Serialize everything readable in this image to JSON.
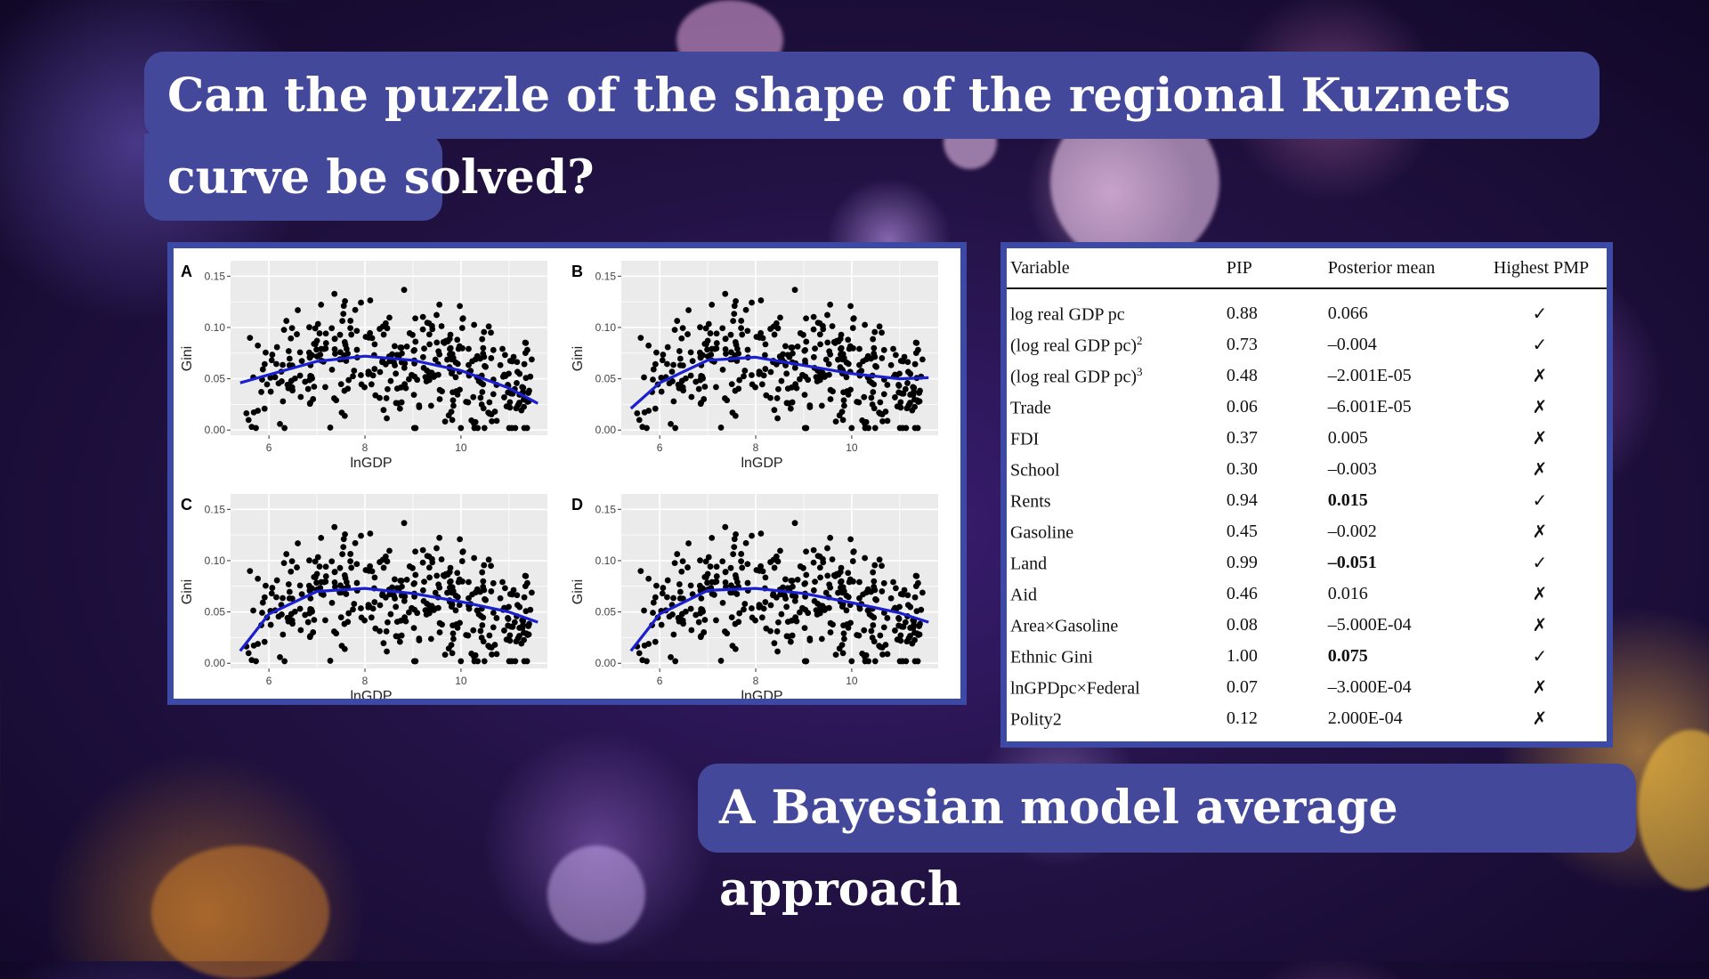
{
  "title": "Can the puzzle of the shape of the regional Kuznets curve be solved?",
  "subtitle": "A Bayesian model average approach",
  "colors": {
    "box": "#43489a",
    "frame": "#3c4aa6",
    "curve": "#1a1fd0",
    "panel_bg": "#ebebeb"
  },
  "figure": {
    "panels": [
      {
        "label": "A",
        "ylabel": "Gini",
        "xlabel": "lnGDP"
      },
      {
        "label": "B",
        "ylabel": "Gini",
        "xlabel": "lnGDP"
      },
      {
        "label": "C",
        "ylabel": "Gini",
        "xlabel": "lnGDP"
      },
      {
        "label": "D",
        "ylabel": "Gini",
        "xlabel": "lnGDP"
      }
    ],
    "y_ticks": [
      "0.00",
      "0.05",
      "0.10",
      "0.15"
    ],
    "x_ticks": [
      "6",
      "8",
      "10"
    ]
  },
  "chart_data": [
    {
      "type": "scatter",
      "title": "A",
      "xlabel": "lnGDP",
      "ylabel": "Gini",
      "xlim": [
        5.2,
        11.8
      ],
      "ylim": [
        -0.005,
        0.165
      ],
      "fit": {
        "x": [
          5.4,
          6,
          7,
          8,
          9,
          10,
          11,
          11.6
        ],
        "y": [
          0.046,
          0.054,
          0.067,
          0.072,
          0.068,
          0.058,
          0.041,
          0.026
        ]
      }
    },
    {
      "type": "scatter",
      "title": "B",
      "xlabel": "lnGDP",
      "ylabel": "Gini",
      "xlim": [
        5.2,
        11.8
      ],
      "ylim": [
        -0.005,
        0.165
      ],
      "fit": {
        "x": [
          5.4,
          6,
          7,
          8,
          9,
          10,
          11,
          11.6
        ],
        "y": [
          0.021,
          0.046,
          0.068,
          0.071,
          0.063,
          0.055,
          0.05,
          0.051
        ]
      }
    },
    {
      "type": "scatter",
      "title": "C",
      "xlabel": "lnGDP",
      "ylabel": "Gini",
      "xlim": [
        5.2,
        11.8
      ],
      "ylim": [
        -0.005,
        0.165
      ],
      "fit": {
        "x": [
          5.4,
          6,
          7,
          8,
          9,
          10,
          11,
          11.6
        ],
        "y": [
          0.012,
          0.048,
          0.07,
          0.073,
          0.068,
          0.06,
          0.05,
          0.04
        ]
      }
    },
    {
      "type": "scatter",
      "title": "D",
      "xlabel": "lnGDP",
      "ylabel": "Gini",
      "xlim": [
        5.2,
        11.8
      ],
      "ylim": [
        -0.005,
        0.165
      ],
      "fit": {
        "x": [
          5.4,
          6,
          7,
          8,
          9,
          10,
          11,
          11.6
        ],
        "y": [
          0.012,
          0.048,
          0.071,
          0.073,
          0.068,
          0.059,
          0.049,
          0.04
        ]
      }
    }
  ],
  "table": {
    "headers": [
      "Variable",
      "PIP",
      "Posterior mean",
      "Highest PMP"
    ],
    "rows": [
      {
        "variable": "log real GDP pc",
        "sup": "",
        "pip": "0.88",
        "mean": "0.066",
        "bold": false,
        "pmp": "✓"
      },
      {
        "variable": "(log real GDP pc)",
        "sup": "2",
        "pip": "0.73",
        "mean": "–0.004",
        "bold": false,
        "pmp": "✓"
      },
      {
        "variable": "(log real GDP pc)",
        "sup": "3",
        "pip": "0.48",
        "mean": "–2.001E-05",
        "bold": false,
        "pmp": "✗"
      },
      {
        "variable": "Trade",
        "sup": "",
        "pip": "0.06",
        "mean": "–6.001E-05",
        "bold": false,
        "pmp": "✗"
      },
      {
        "variable": "FDI",
        "sup": "",
        "pip": "0.37",
        "mean": "0.005",
        "bold": false,
        "pmp": "✗"
      },
      {
        "variable": "School",
        "sup": "",
        "pip": "0.30",
        "mean": "–0.003",
        "bold": false,
        "pmp": "✗"
      },
      {
        "variable": "Rents",
        "sup": "",
        "pip": "0.94",
        "mean": "0.015",
        "bold": true,
        "pmp": "✓"
      },
      {
        "variable": "Gasoline",
        "sup": "",
        "pip": "0.45",
        "mean": "–0.002",
        "bold": false,
        "pmp": "✗"
      },
      {
        "variable": "Land",
        "sup": "",
        "pip": "0.99",
        "mean": "–0.051",
        "bold": true,
        "pmp": "✓"
      },
      {
        "variable": "Aid",
        "sup": "",
        "pip": "0.46",
        "mean": "0.016",
        "bold": false,
        "pmp": "✗"
      },
      {
        "variable": "Area×Gasoline",
        "sup": "",
        "pip": "0.08",
        "mean": "–5.000E-04",
        "bold": false,
        "pmp": "✗"
      },
      {
        "variable": "Ethnic Gini",
        "sup": "",
        "pip": "1.00",
        "mean": "0.075",
        "bold": true,
        "pmp": "✓"
      },
      {
        "variable": "lnGPDpc×Federal",
        "sup": "",
        "pip": "0.07",
        "mean": "–3.000E-04",
        "bold": false,
        "pmp": "✗"
      },
      {
        "variable": "Polity2",
        "sup": "",
        "pip": "0.12",
        "mean": "2.000E-04",
        "bold": false,
        "pmp": "✗"
      }
    ]
  }
}
